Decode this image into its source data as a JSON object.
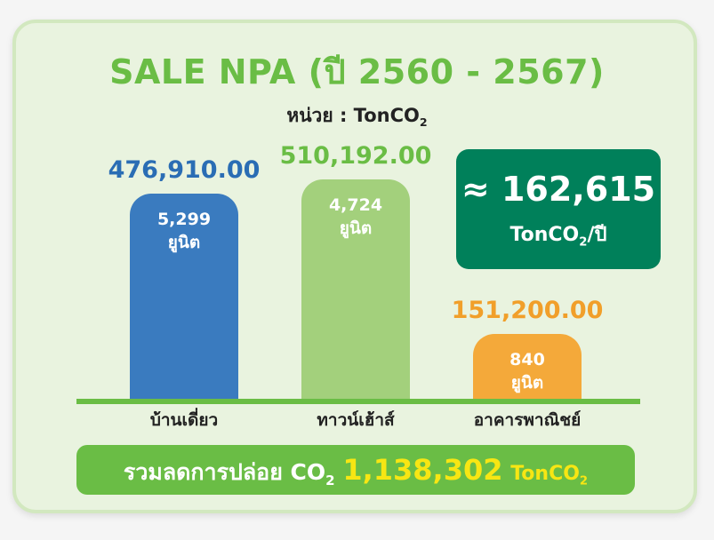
{
  "title": {
    "main": "SALE NPA",
    "period": "(ปี 2560 - 2567)"
  },
  "unit_label": "หน่วย : TonCO",
  "unit_sub": "2",
  "kpi": {
    "value": "≈ 162,615",
    "unit_prefix": "TonCO",
    "unit_sub": "2",
    "unit_suffix": "/ปี",
    "color": "#00805a"
  },
  "total": {
    "label": "รวมลดการปล่อย CO",
    "label_sub": "2",
    "value": "1,138,302",
    "unit": "TonCO",
    "unit_sub": "2"
  },
  "chart_data": {
    "type": "bar",
    "categories": [
      "บ้านเดี่ยว",
      "ทาวน์เฮ้าส์",
      "อาคารพาณิชย์"
    ],
    "values": [
      476910.0,
      510192.0,
      151200.0
    ],
    "value_labels": [
      "476,910.00",
      "510,192.00",
      "151,200.00"
    ],
    "units": [
      "5,299",
      "4,724",
      "840"
    ],
    "unit_word": "ยูนิต",
    "colors": [
      "#3a7bbf",
      "#a3d07c",
      "#f4a93a"
    ],
    "label_colors": [
      "#2a6db4",
      "#6abd45",
      "#f19f2a"
    ],
    "ylim": [
      0,
      510192
    ]
  }
}
